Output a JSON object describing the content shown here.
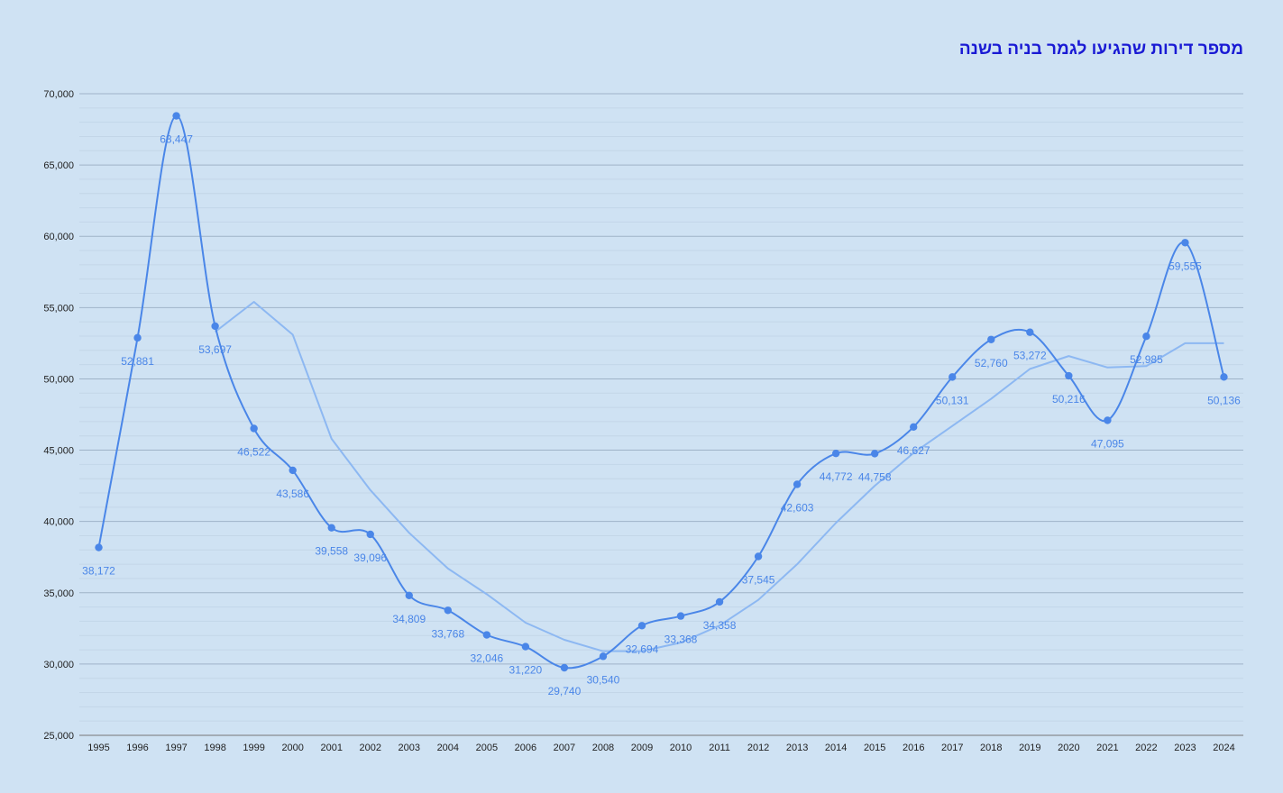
{
  "chart_data": {
    "type": "line",
    "title": "מספר דירות שהגיעו לגמר בניה בשנה",
    "xlabel": "",
    "ylabel": "",
    "x": [
      "1995",
      "1996",
      "1997",
      "1998",
      "1999",
      "2000",
      "2001",
      "2002",
      "2003",
      "2004",
      "2005",
      "2006",
      "2007",
      "2008",
      "2009",
      "2010",
      "2011",
      "2012",
      "2013",
      "2014",
      "2015",
      "2016",
      "2017",
      "2018",
      "2019",
      "2020",
      "2021",
      "2022",
      "2023",
      "2024"
    ],
    "ylim": [
      25000,
      70000
    ],
    "yticks": [
      25000,
      30000,
      35000,
      40000,
      45000,
      50000,
      55000,
      60000,
      65000,
      70000
    ],
    "ytick_labels": [
      "25,000",
      "30,000",
      "35,000",
      "40,000",
      "45,000",
      "50,000",
      "55,000",
      "60,000",
      "65,000",
      "70,000"
    ],
    "grid": true,
    "legend": "none",
    "series": [
      {
        "values": [
          38172,
          52881,
          68447,
          53697,
          46522,
          43586,
          39558,
          39096,
          34809,
          33768,
          32046,
          31220,
          29740,
          30540,
          32694,
          33368,
          34358,
          37545,
          42603,
          44772,
          44758,
          46627,
          50131,
          52760,
          53272,
          50216,
          47095,
          52985,
          59555,
          50136
        ],
        "labels": [
          "38,172",
          "52,881",
          "68,447",
          "53,697",
          "46,522",
          "43,586",
          "39,558",
          "39,096",
          "34,809",
          "33,768",
          "32,046",
          "31,220",
          "29,740",
          "30,540",
          "32,694",
          "33,368",
          "34,358",
          "37,545",
          "42,603",
          "44,772",
          "44,758",
          "46,627",
          "50,131",
          "52,760",
          "53,272",
          "50,216",
          "47,095",
          "52,985",
          "59,555",
          "50,136"
        ],
        "color": "#4a86e8",
        "smooth": true,
        "markers": true
      },
      {
        "values": [
          null,
          null,
          null,
          53300,
          55400,
          53100,
          45800,
          42200,
          39200,
          36700,
          34900,
          32900,
          31700,
          30900,
          30900,
          31500,
          32700,
          34500,
          37000,
          39900,
          42500,
          44800,
          46700,
          48600,
          50700,
          51600,
          50800,
          50900,
          52500,
          52500
        ],
        "color": "#8db8f2",
        "smooth": false,
        "markers": false
      }
    ]
  }
}
